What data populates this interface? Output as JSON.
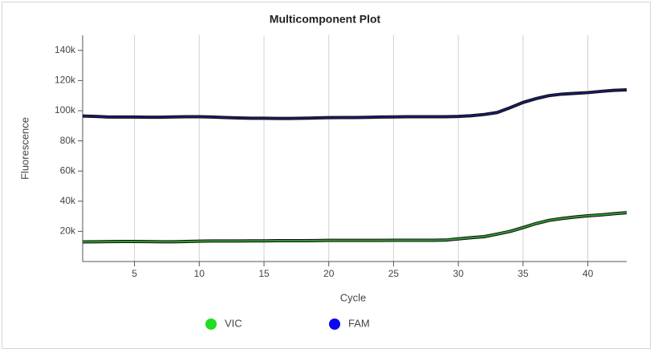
{
  "chart_data": {
    "type": "line",
    "title": "Multicomponent Plot",
    "x_label": "Cycle",
    "y_label": "Fluorescence",
    "x": [
      1,
      2,
      3,
      4,
      5,
      6,
      7,
      8,
      9,
      10,
      11,
      12,
      13,
      14,
      15,
      16,
      17,
      18,
      19,
      20,
      21,
      22,
      23,
      24,
      25,
      26,
      27,
      28,
      29,
      30,
      31,
      32,
      33,
      34,
      35,
      36,
      37,
      38,
      39,
      40,
      41,
      42,
      43
    ],
    "series": [
      {
        "name": "VIC",
        "color": "#2f9a2f",
        "marker_color": "#22dd22",
        "values": [
          13000,
          13100,
          13200,
          13300,
          13300,
          13200,
          13100,
          13100,
          13300,
          13500,
          13600,
          13600,
          13600,
          13700,
          13700,
          13800,
          13800,
          13800,
          13900,
          14000,
          14000,
          14000,
          14000,
          14000,
          14100,
          14100,
          14100,
          14100,
          14200,
          15000,
          15800,
          16500,
          18200,
          20000,
          22500,
          25200,
          27300,
          28500,
          29500,
          30300,
          30900,
          31700,
          32400
        ]
      },
      {
        "name": "FAM",
        "color": "#1a1a6e",
        "marker_color": "#0a0aee",
        "values": [
          96500,
          96200,
          95800,
          95800,
          95800,
          95700,
          95700,
          95900,
          96000,
          96000,
          95800,
          95500,
          95200,
          95000,
          95000,
          94900,
          94900,
          95000,
          95200,
          95400,
          95500,
          95500,
          95600,
          95800,
          95900,
          96000,
          96000,
          96000,
          96000,
          96200,
          96700,
          97500,
          98800,
          102000,
          105500,
          108000,
          110000,
          111000,
          111500,
          112000,
          112800,
          113500,
          113800
        ]
      }
    ],
    "xlim": [
      1,
      43
    ],
    "xticks": [
      5,
      10,
      15,
      20,
      25,
      30,
      35,
      40
    ],
    "ylim": [
      0,
      150000
    ],
    "yticks": [
      {
        "value": 20000,
        "label": "20k"
      },
      {
        "value": 40000,
        "label": "40k"
      },
      {
        "value": 60000,
        "label": "60k"
      },
      {
        "value": 80000,
        "label": "80k"
      },
      {
        "value": 100000,
        "label": "100k"
      },
      {
        "value": 120000,
        "label": "120k"
      },
      {
        "value": 140000,
        "label": "140k"
      }
    ],
    "grid": "x"
  }
}
